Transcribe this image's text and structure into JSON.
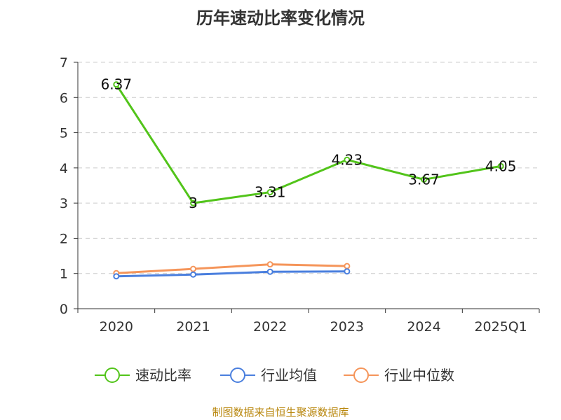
{
  "chart_data": {
    "type": "line",
    "title": "历年速动比率变化情况",
    "categories": [
      "2020",
      "2021",
      "2022",
      "2023",
      "2024",
      "2025Q1"
    ],
    "ylim": [
      0,
      7
    ],
    "yticks": [
      "0",
      "1",
      "2",
      "3",
      "4",
      "5",
      "6",
      "7"
    ],
    "grid": true,
    "legend_position": "bottom",
    "series": [
      {
        "name": "速动比率",
        "color": "#52c41a",
        "values": [
          6.37,
          3,
          3.31,
          4.23,
          3.67,
          4.05
        ],
        "labels": [
          "6.37",
          "3",
          "3.31",
          "4.23",
          "3.67",
          "4.05"
        ]
      },
      {
        "name": "行业均值",
        "color": "#4a7fde",
        "values": [
          0.92,
          0.97,
          1.05,
          1.06,
          null,
          null
        ]
      },
      {
        "name": "行业中位数",
        "color": "#f5955a",
        "values": [
          1.01,
          1.13,
          1.26,
          1.21,
          null,
          null
        ]
      }
    ]
  },
  "source": "制图数据来自恒生聚源数据库"
}
